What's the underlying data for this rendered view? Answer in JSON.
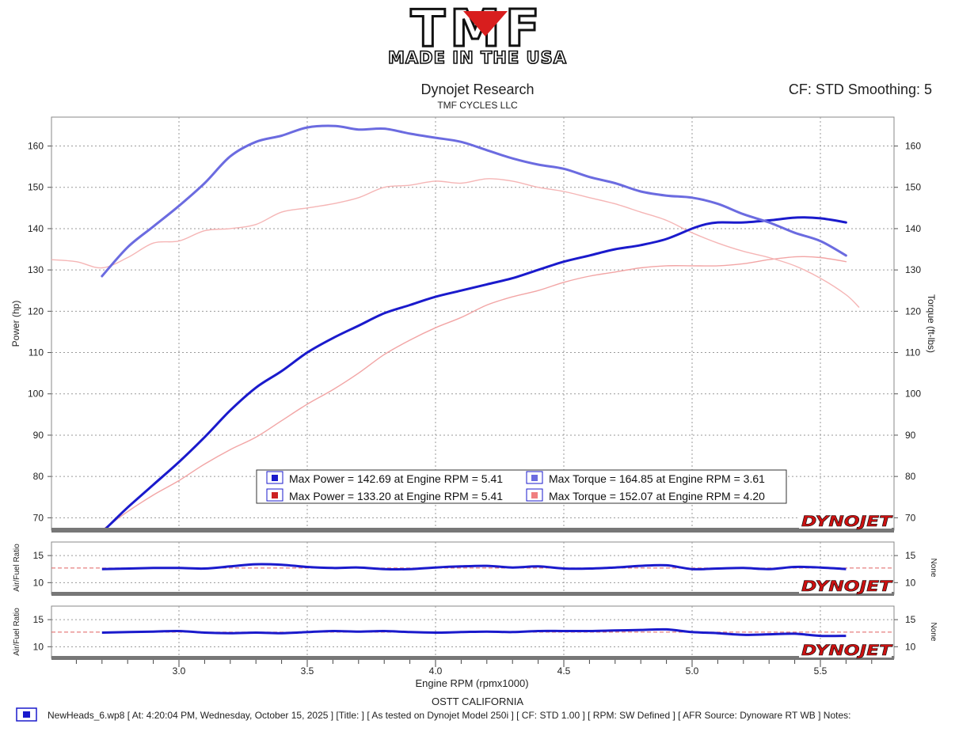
{
  "logo": {
    "main": "TMF",
    "tagline": "MADE IN THE USA"
  },
  "header": {
    "title": "Dynojet Research",
    "subtitle": "TMF CYCLES LLC",
    "cf_text": "CF: STD Smoothing: 5"
  },
  "brand": "DYNOJET",
  "footer": {
    "location": "OSTT CALIFORNIA",
    "run_info": "NewHeads_6.wp8 [ At: 4:20:04 PM, Wednesday, October 15, 2025 ] [Title: ]  [ As tested on Dynojet Model 250i ] [ CF: STD 1.00 ] [ RPM: SW Defined ] [ AFR Source: Dynoware RT WB ] Notes:"
  },
  "colors": {
    "power_run1": "#1a1acc",
    "torque_run1": "#6b6be0",
    "power_run2": "#f2a5a5",
    "torque_run2": "#f5b5b5",
    "afr_ref": "#e06060",
    "brand_red": "#cc1111"
  },
  "legend": [
    {
      "swatch": "#1a1acc",
      "text": "Max Power = 142.69 at Engine RPM = 5.41"
    },
    {
      "swatch": "#6b6be0",
      "text": "Max Torque = 164.85 at Engine RPM = 3.61"
    },
    {
      "swatch": "#cc2222",
      "text": "Max Power = 133.20 at Engine RPM = 5.41"
    },
    {
      "swatch": "#f08080",
      "text": "Max Torque = 152.07 at Engine RPM = 4.20"
    }
  ],
  "chart_data": [
    {
      "type": "line",
      "ylabel": "Power (hp)",
      "y2label": "Torque (ft-lbs)",
      "xlim": [
        2.5,
        5.8
      ],
      "ylim": [
        67,
        167
      ],
      "yticks": [
        70,
        80,
        90,
        100,
        110,
        120,
        130,
        140,
        150,
        160
      ],
      "grid": true,
      "legend_position": "bottom-center",
      "series": [
        {
          "run": 1,
          "measure": "power",
          "x": [
            2.7,
            2.75,
            2.8,
            2.9,
            3.0,
            3.1,
            3.2,
            3.3,
            3.4,
            3.5,
            3.6,
            3.7,
            3.8,
            3.9,
            4.0,
            4.1,
            4.2,
            4.3,
            4.4,
            4.5,
            4.6,
            4.7,
            4.8,
            4.9,
            5.0,
            5.05,
            5.1,
            5.2,
            5.3,
            5.41,
            5.5,
            5.6
          ],
          "y": [
            66.5,
            69.5,
            72.5,
            78,
            83.5,
            89.5,
            96,
            101.5,
            105.5,
            110,
            113.5,
            116.5,
            119.5,
            121.5,
            123.5,
            125,
            126.5,
            128,
            130,
            132,
            133.5,
            135,
            136,
            137.5,
            140,
            141,
            141.5,
            141.5,
            142,
            142.69,
            142.5,
            141.5
          ]
        },
        {
          "run": 1,
          "measure": "torque",
          "x": [
            2.7,
            2.8,
            2.9,
            3.0,
            3.1,
            3.2,
            3.3,
            3.4,
            3.5,
            3.61,
            3.7,
            3.8,
            3.9,
            4.0,
            4.1,
            4.2,
            4.3,
            4.4,
            4.5,
            4.6,
            4.7,
            4.8,
            4.9,
            5.0,
            5.1,
            5.2,
            5.3,
            5.4,
            5.5,
            5.6
          ],
          "y": [
            128.5,
            135.5,
            140.5,
            145.5,
            151,
            157.5,
            161,
            162.5,
            164.5,
            164.85,
            164,
            164.2,
            163,
            162,
            161,
            159,
            157,
            155.5,
            154.5,
            152.5,
            151,
            149,
            148,
            147.5,
            146,
            143.5,
            141.5,
            139,
            137,
            133.5
          ]
        },
        {
          "run": 2,
          "measure": "power",
          "x": [
            2.7,
            2.8,
            2.9,
            3.0,
            3.1,
            3.2,
            3.3,
            3.4,
            3.5,
            3.6,
            3.7,
            3.8,
            3.9,
            4.0,
            4.1,
            4.2,
            4.3,
            4.4,
            4.5,
            4.6,
            4.7,
            4.8,
            4.9,
            5.0,
            5.1,
            5.2,
            5.3,
            5.41,
            5.5,
            5.6
          ],
          "y": [
            67,
            71.5,
            75.5,
            79,
            83,
            86.5,
            89.5,
            93.5,
            97.5,
            101,
            105,
            109.5,
            113,
            116,
            118.5,
            121.5,
            123.5,
            125,
            127,
            128.5,
            129.5,
            130.5,
            131,
            131,
            131,
            131.5,
            132.5,
            133.2,
            133,
            132
          ]
        },
        {
          "run": 2,
          "measure": "torque",
          "x": [
            2.5,
            2.6,
            2.7,
            2.8,
            2.9,
            3.0,
            3.1,
            3.2,
            3.3,
            3.4,
            3.5,
            3.6,
            3.7,
            3.8,
            3.9,
            4.0,
            4.1,
            4.2,
            4.3,
            4.4,
            4.5,
            4.6,
            4.7,
            4.8,
            4.9,
            5.0,
            5.1,
            5.2,
            5.3,
            5.4,
            5.5,
            5.6,
            5.65
          ],
          "y": [
            132.5,
            132,
            130.5,
            133,
            136.5,
            137,
            139.5,
            140,
            141,
            144,
            145,
            146,
            147.5,
            150,
            150.5,
            151.5,
            151,
            152.07,
            151.5,
            150,
            149,
            147.5,
            146,
            144,
            142,
            139,
            136.5,
            134.5,
            133,
            131,
            128,
            124,
            121
          ]
        }
      ]
    },
    {
      "type": "line",
      "ylabel": "Air/Fuel Ratio",
      "y2label": "None",
      "xlim": [
        2.5,
        5.8
      ],
      "ylim": [
        8,
        17.5
      ],
      "yticks": [
        10,
        15
      ],
      "reference_value": 12.7,
      "series": [
        {
          "run": 1,
          "measure": "afr",
          "x": [
            2.7,
            2.9,
            3.0,
            3.1,
            3.2,
            3.3,
            3.4,
            3.5,
            3.6,
            3.7,
            3.8,
            3.9,
            4.0,
            4.1,
            4.2,
            4.3,
            4.4,
            4.5,
            4.6,
            4.7,
            4.8,
            4.9,
            5.0,
            5.1,
            5.2,
            5.3,
            5.4,
            5.5,
            5.6
          ],
          "y": [
            12.5,
            12.7,
            12.7,
            12.6,
            13.0,
            13.4,
            13.3,
            12.9,
            12.7,
            12.8,
            12.5,
            12.5,
            12.8,
            13.0,
            13.1,
            12.8,
            13.0,
            12.6,
            12.6,
            12.8,
            13.1,
            13.2,
            12.5,
            12.6,
            12.7,
            12.5,
            12.9,
            12.8,
            12.5
          ]
        }
      ]
    },
    {
      "type": "line",
      "ylabel": "Air/Fuel Ratio",
      "y2label": "None",
      "xlabel": "Engine RPM (rpmx1000)",
      "xlim": [
        2.5,
        5.8
      ],
      "xticks": [
        3.0,
        3.5,
        4.0,
        4.5,
        5.0,
        5.5
      ],
      "ylim": [
        8,
        17.5
      ],
      "yticks": [
        10,
        15
      ],
      "reference_value": 12.7,
      "series": [
        {
          "run": 1,
          "measure": "afr",
          "x": [
            2.7,
            2.9,
            3.0,
            3.1,
            3.2,
            3.3,
            3.4,
            3.5,
            3.6,
            3.7,
            3.8,
            3.9,
            4.0,
            4.1,
            4.2,
            4.3,
            4.4,
            4.5,
            4.6,
            4.7,
            4.8,
            4.9,
            5.0,
            5.1,
            5.2,
            5.3,
            5.4,
            5.5,
            5.6
          ],
          "y": [
            12.6,
            12.8,
            12.9,
            12.6,
            12.5,
            12.6,
            12.5,
            12.7,
            12.9,
            12.8,
            12.9,
            12.7,
            12.6,
            12.7,
            12.8,
            12.7,
            12.9,
            12.9,
            12.9,
            13.0,
            13.1,
            13.2,
            12.7,
            12.5,
            12.2,
            12.3,
            12.4,
            12.0,
            12.0
          ]
        }
      ]
    }
  ]
}
